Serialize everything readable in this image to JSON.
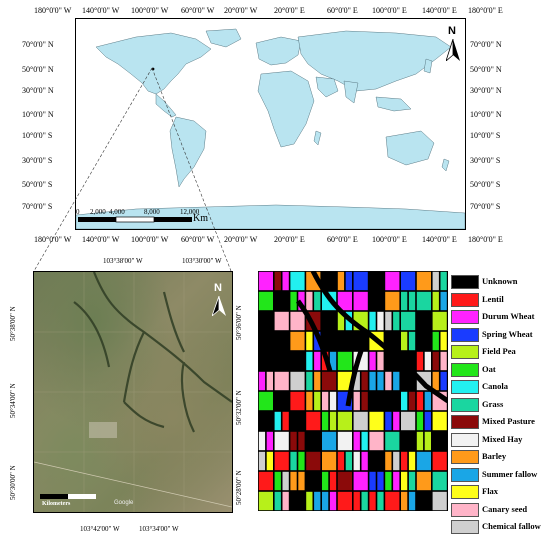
{
  "world_map": {
    "top_lon_labels": [
      "180°0'0\" W",
      "140°0'0\" W",
      "100°0'0\" W",
      "60°0'0\" W",
      "20°0'0\" W",
      "20°0'0\" E",
      "60°0'0\" E",
      "100°0'0\" E",
      "140°0'0\" E",
      "180°0'0\" E"
    ],
    "bottom_lon_labels": [
      "180°0'0\" W",
      "140°0'0\" W",
      "100°0'0\" W",
      "60°0'0\" W",
      "20°0'0\" W",
      "20°0'0\" E",
      "60°0'0\" E",
      "100°0'0\" E",
      "140°0'0\" E",
      "180°0'0\" E"
    ],
    "lat_labels": [
      "70°0'0\" N",
      "50°0'0\" N",
      "30°0'0\" N",
      "10°0'0\" N",
      "10°0'0\" S",
      "30°0'0\" S",
      "50°0'0\" S",
      "70°0'0\" S"
    ],
    "north_label": "N",
    "scalebar_labels": [
      "0",
      "2,000",
      "4,000",
      "8,000",
      "12,000"
    ],
    "scalebar_unit": "Km",
    "land_color": "#b9e4f0"
  },
  "satellite_map": {
    "top_lon_labels": [
      "103°38'00\" W",
      "103°30'00\" W"
    ],
    "bottom_lon_labels": [
      "103°42'00\" W",
      "103°34'00\" W"
    ],
    "left_lat_labels": [
      "50°38'00\" N",
      "50°34'00\" N",
      "50°30'00\" N"
    ],
    "right_lat_labels": [
      "50°36'00\" N",
      "50°32'00\" N",
      "50°28'00\" N"
    ],
    "north_label": "N",
    "scale_unit": "Kilometers",
    "watermark": "Google"
  },
  "legend": [
    {
      "label": "Unknown",
      "color": "#000000"
    },
    {
      "label": "Lentil",
      "color": "#ff1a1a"
    },
    {
      "label": "Durum Wheat",
      "color": "#ff22ff"
    },
    {
      "label": "Spring Wheat",
      "color": "#1a3cff"
    },
    {
      "label": "Field Pea",
      "color": "#b7f01a"
    },
    {
      "label": "Oat",
      "color": "#22e61a"
    },
    {
      "label": "Canola",
      "color": "#22f0f0"
    },
    {
      "label": "Grass",
      "color": "#1ad6a0"
    },
    {
      "label": "Mixed Pasture",
      "color": "#8b0a0a"
    },
    {
      "label": "Mixed Hay",
      "color": "#f2f2f2"
    },
    {
      "label": "Barley",
      "color": "#ff9a1a"
    },
    {
      "label": "Summer fallow",
      "color": "#1aa6e6"
    },
    {
      "label": "Flax",
      "color": "#ffff1a"
    },
    {
      "label": "Canary seed",
      "color": "#ffb4c8"
    },
    {
      "label": "Chemical fallow",
      "color": "#cfcfcf"
    }
  ]
}
